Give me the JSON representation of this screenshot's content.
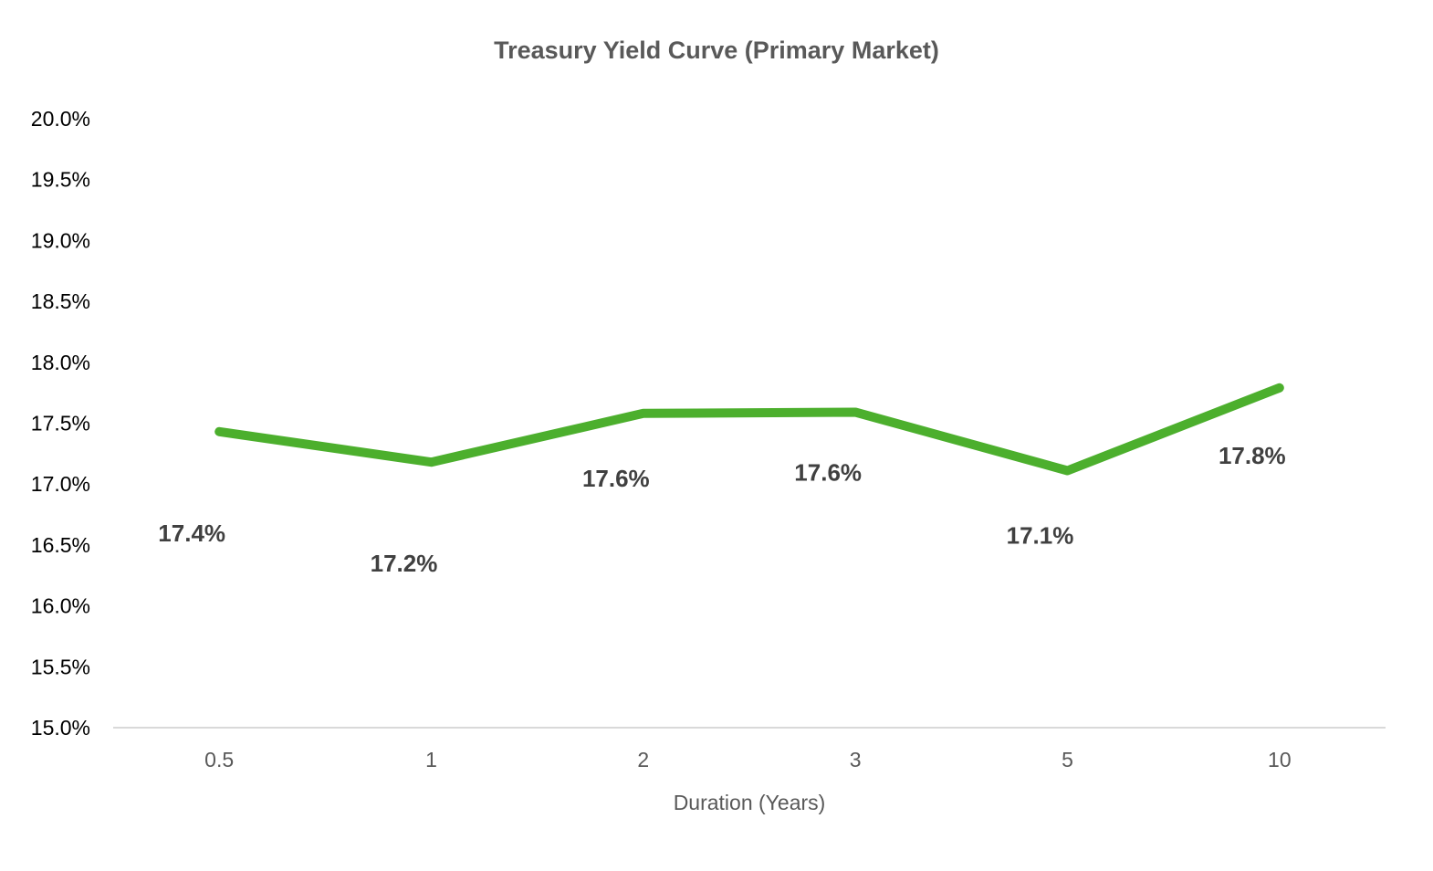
{
  "chart_data": {
    "type": "line",
    "title": "Treasury Yield Curve (Primary Market)",
    "xlabel": "Duration (Years)",
    "ylabel": "",
    "categories": [
      "0.5",
      "1",
      "2",
      "3",
      "5",
      "10"
    ],
    "series": [
      {
        "values": [
          17.43,
          17.18,
          17.58,
          17.59,
          17.11,
          17.79
        ],
        "data_labels": [
          "17.4%",
          "17.2%",
          "17.6%",
          "17.6%",
          "17.1%",
          "17.8%"
        ]
      }
    ],
    "ylim": [
      15.0,
      20.0
    ],
    "y_ticks": [
      "15.0%",
      "15.5%",
      "16.0%",
      "16.5%",
      "17.0%",
      "17.5%",
      "18.0%",
      "18.5%",
      "19.0%",
      "19.5%",
      "20.0%"
    ],
    "grid": false,
    "legend": "none",
    "colors": {
      "line": "#4caf2d",
      "axis": "#d9d9d9"
    }
  }
}
